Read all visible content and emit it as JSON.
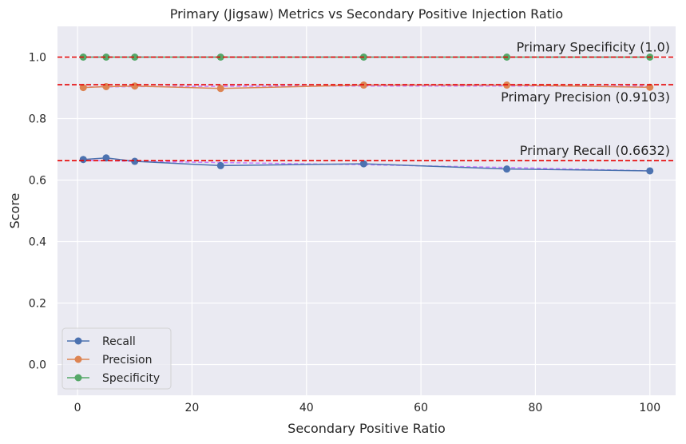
{
  "chart_data": {
    "type": "line",
    "title": "Primary (Jigsaw) Metrics vs Secondary Positive Injection Ratio",
    "xlabel": "Secondary Positive Ratio",
    "ylabel": "Score",
    "xlim": [
      -3.5,
      104.5
    ],
    "ylim": [
      -0.1,
      1.1
    ],
    "xticks": [
      0,
      20,
      40,
      60,
      80,
      100
    ],
    "yticks": [
      0.0,
      0.2,
      0.4,
      0.6,
      0.8,
      1.0
    ],
    "grid": true,
    "legend_position": "lower-left",
    "x": [
      1,
      5,
      10,
      25,
      50,
      75,
      100
    ],
    "series": [
      {
        "name": "Recall",
        "color": "#4c72b0",
        "values": [
          0.667,
          0.672,
          0.661,
          0.647,
          0.653,
          0.636,
          0.63
        ]
      },
      {
        "name": "Precision",
        "color": "#dd8452",
        "values": [
          0.901,
          0.904,
          0.906,
          0.898,
          0.909,
          0.909,
          0.902
        ]
      },
      {
        "name": "Specificity",
        "color": "#55a868",
        "values": [
          1.0,
          1.0,
          1.0,
          1.0,
          1.0,
          1.0,
          1.0
        ]
      }
    ],
    "trend_lines": [
      {
        "color": "#c77dff",
        "values": [
          0.664,
          0.663,
          0.661,
          0.657,
          0.65,
          0.641,
          0.63
        ]
      },
      {
        "color": "#c77dff",
        "values": [
          0.903,
          0.903,
          0.904,
          0.905,
          0.906,
          0.906,
          0.905
        ]
      },
      {
        "color": "#c77dff",
        "values": [
          1.0,
          1.0,
          1.0,
          1.0,
          1.0,
          1.0,
          1.0
        ]
      }
    ],
    "reference_lines": [
      {
        "value": 1.0,
        "label": "Primary Specificity (1.0)",
        "color": "#e60000",
        "label_side": "above"
      },
      {
        "value": 0.9103,
        "label": "Primary Precision (0.9103)",
        "color": "#e60000",
        "label_side": "below"
      },
      {
        "value": 0.6632,
        "label": "Primary Recall (0.6632)",
        "color": "#e60000",
        "label_side": "above"
      }
    ]
  }
}
